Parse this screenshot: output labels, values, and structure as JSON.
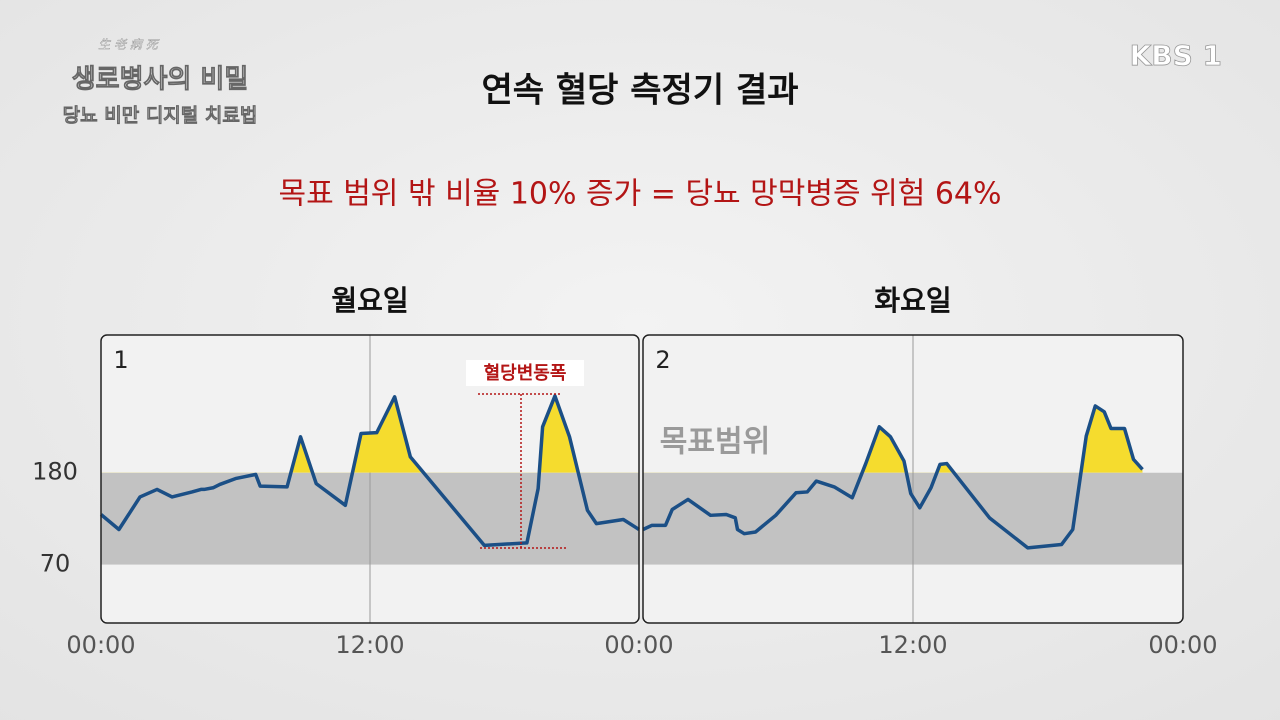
{
  "header": {
    "title": "연속 혈당 측정기 결과",
    "subtitle": "목표 범위 밖 비율 10% 증가 = 당뇨 망막병증 위험 64%"
  },
  "broadcast": {
    "channel": "KBS 1",
    "program_small": "生 老 病 死",
    "program": "생로병사의 비밀",
    "episode": "당뇨 비만 디지털 치료법"
  },
  "chart_data": [
    {
      "type": "line",
      "title": "월요일",
      "panel_label": "1",
      "annotation": "혈당변동폭",
      "x": [
        0,
        0.8,
        1.74,
        2.5,
        3.17,
        4.06,
        4.46,
        4.6,
        5.0,
        5.3,
        6.0,
        6.9,
        7.1,
        8.3,
        8.9,
        9.6,
        10.9,
        11.6,
        12.3,
        13.1,
        13.8,
        17.1,
        19.0,
        19.5,
        19.7,
        20.25,
        20.9,
        21.7,
        22.1,
        23.3,
        24.0
      ],
      "values": [
        130,
        112,
        151,
        160,
        151,
        157,
        160,
        160,
        162,
        166,
        173,
        178,
        164,
        163,
        223,
        167,
        141,
        227,
        228,
        271,
        199,
        93,
        96,
        161,
        235,
        272,
        223,
        135,
        119,
        124,
        112
      ],
      "color": "#1b4f86",
      "highlight_color": "#f5dc2e",
      "target_range": [
        70,
        180
      ],
      "band_color": "#c2c2c2",
      "xlim": [
        0,
        24
      ],
      "xticks": [
        {
          "value": 0,
          "label": "00:00"
        },
        {
          "value": 12,
          "label": "12:00"
        },
        {
          "value": 24,
          "label": "00:00"
        }
      ],
      "ylim": [
        0,
        345
      ],
      "yticks": [
        70,
        180
      ],
      "grid": true
    },
    {
      "type": "line",
      "title": "화요일",
      "panel_label": "2",
      "band_label": "목표범위",
      "x": [
        0,
        0.4,
        1.0,
        1.3,
        2.0,
        3.0,
        3.7,
        4.1,
        4.2,
        4.5,
        5.0,
        5.9,
        6.8,
        7.3,
        7.7,
        8.5,
        9.3,
        9.9,
        10.5,
        11.0,
        11.6,
        11.9,
        12.3,
        12.8,
        13.2,
        13.5,
        15.4,
        17.1,
        18.6,
        19.1,
        19.7,
        20.1,
        20.5,
        20.8,
        21.4,
        21.8,
        22.2
      ],
      "values": [
        112,
        117,
        117,
        136,
        148,
        129,
        130,
        126,
        112,
        107,
        109,
        129,
        156,
        157,
        170,
        163,
        150,
        191,
        235,
        223,
        194,
        155,
        138,
        162,
        190,
        191,
        126,
        90,
        94,
        112,
        224,
        260,
        253,
        233,
        233,
        196,
        184
      ],
      "color": "#1b4f86",
      "highlight_color": "#f5dc2e",
      "target_range": [
        70,
        180
      ],
      "band_color": "#c2c2c2",
      "xlim": [
        0,
        24
      ],
      "xticks": [
        {
          "value": 12,
          "label": "12:00"
        },
        {
          "value": 24,
          "label": "00:00"
        }
      ],
      "ylim": [
        0,
        345
      ],
      "grid": true
    }
  ]
}
